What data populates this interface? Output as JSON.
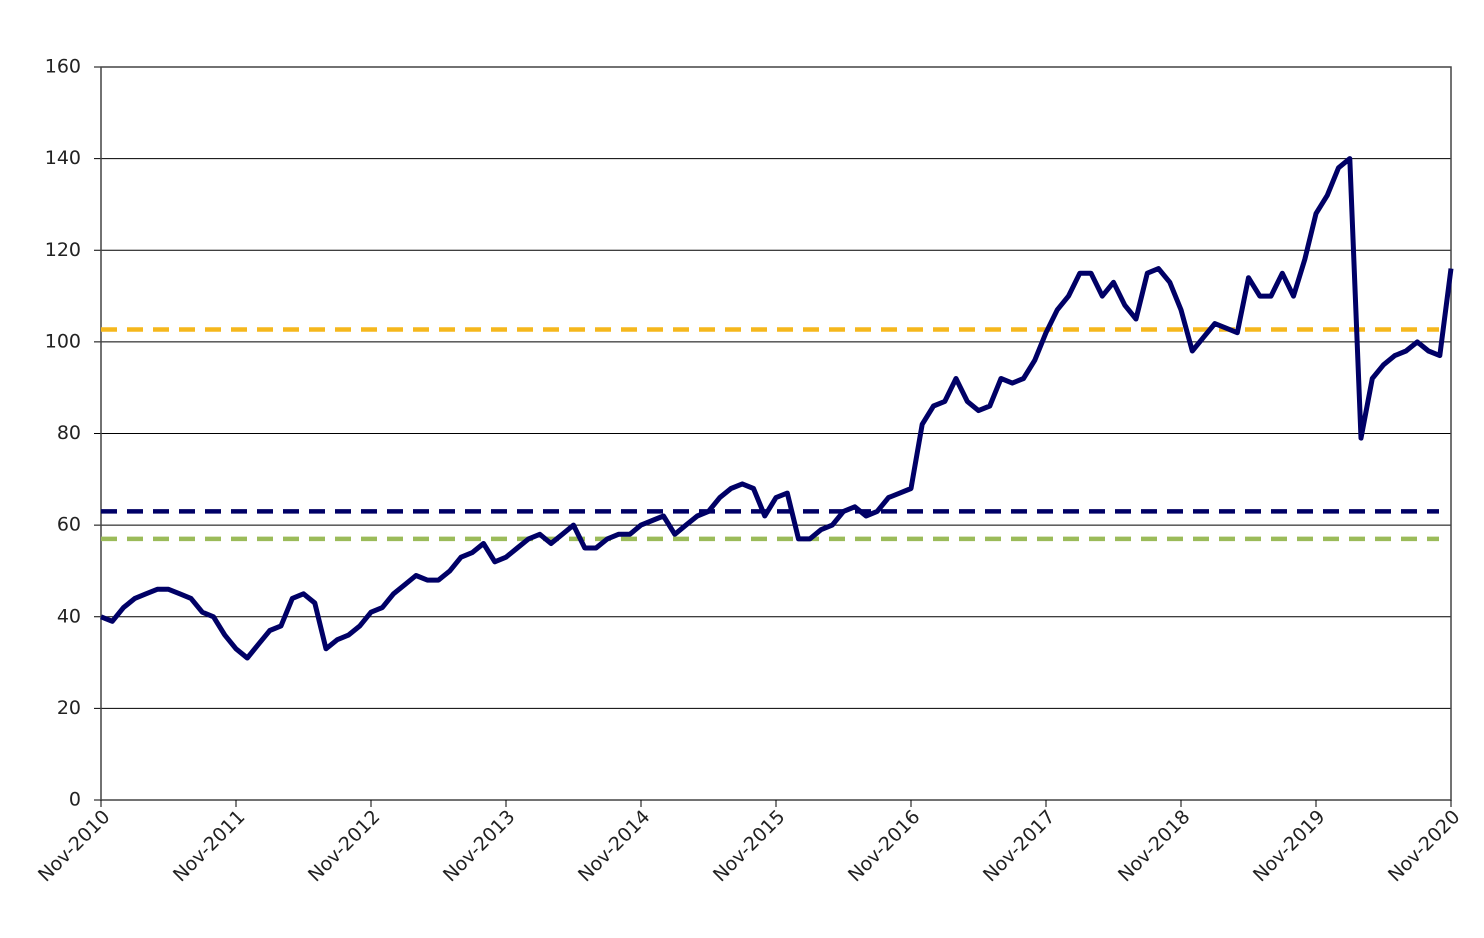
{
  "chart_data": {
    "type": "line",
    "x": [
      "Nov-2010",
      "Dec-2010",
      "Jan-2011",
      "Feb-2011",
      "Mar-2011",
      "Apr-2011",
      "May-2011",
      "Jun-2011",
      "Jul-2011",
      "Aug-2011",
      "Sep-2011",
      "Oct-2011",
      "Nov-2011",
      "Dec-2011",
      "Jan-2012",
      "Feb-2012",
      "Mar-2012",
      "Apr-2012",
      "May-2012",
      "Jun-2012",
      "Jul-2012",
      "Aug-2012",
      "Sep-2012",
      "Oct-2012",
      "Nov-2012",
      "Dec-2012",
      "Jan-2013",
      "Feb-2013",
      "Mar-2013",
      "Apr-2013",
      "May-2013",
      "Jun-2013",
      "Jul-2013",
      "Aug-2013",
      "Sep-2013",
      "Oct-2013",
      "Nov-2013",
      "Dec-2013",
      "Jan-2014",
      "Feb-2014",
      "Mar-2014",
      "Apr-2014",
      "May-2014",
      "Jun-2014",
      "Jul-2014",
      "Aug-2014",
      "Sep-2014",
      "Oct-2014",
      "Nov-2014",
      "Dec-2014",
      "Jan-2015",
      "Feb-2015",
      "Mar-2015",
      "Apr-2015",
      "May-2015",
      "Jun-2015",
      "Jul-2015",
      "Aug-2015",
      "Sep-2015",
      "Oct-2015",
      "Nov-2015",
      "Dec-2015",
      "Jan-2016",
      "Feb-2016",
      "Mar-2016",
      "Apr-2016",
      "May-2016",
      "Jun-2016",
      "Jul-2016",
      "Aug-2016",
      "Sep-2016",
      "Oct-2016",
      "Nov-2016",
      "Dec-2016",
      "Jan-2017",
      "Feb-2017",
      "Mar-2017",
      "Apr-2017",
      "May-2017",
      "Jun-2017",
      "Jul-2017",
      "Aug-2017",
      "Sep-2017",
      "Oct-2017",
      "Nov-2017",
      "Dec-2017",
      "Jan-2018",
      "Feb-2018",
      "Mar-2018",
      "Apr-2018",
      "May-2018",
      "Jun-2018",
      "Jul-2018",
      "Aug-2018",
      "Sep-2018",
      "Oct-2018",
      "Nov-2018",
      "Dec-2018",
      "Jan-2019",
      "Feb-2019",
      "Mar-2019",
      "Apr-2019",
      "May-2019",
      "Jun-2019",
      "Jul-2019",
      "Aug-2019",
      "Sep-2019",
      "Oct-2019",
      "Nov-2019",
      "Dec-2019",
      "Jan-2020",
      "Feb-2020",
      "Mar-2020",
      "Apr-2020",
      "May-2020",
      "Jun-2020",
      "Jul-2020",
      "Aug-2020",
      "Sep-2020",
      "Oct-2020",
      "Nov-2020"
    ],
    "series": [
      {
        "color": "#000066",
        "values": [
          40,
          39,
          42,
          44,
          45,
          46,
          46,
          45,
          44,
          41,
          40,
          36,
          33,
          31,
          34,
          37,
          38,
          44,
          45,
          43,
          33,
          35,
          36,
          38,
          41,
          42,
          45,
          47,
          49,
          48,
          48,
          50,
          53,
          54,
          56,
          52,
          53,
          55,
          57,
          58,
          56,
          58,
          60,
          55,
          55,
          57,
          58,
          58,
          60,
          61,
          62,
          58,
          60,
          62,
          63,
          66,
          68,
          69,
          68,
          62,
          66,
          67,
          57,
          57,
          59,
          60,
          63,
          64,
          62,
          63,
          66,
          67,
          68,
          82,
          86,
          87,
          92,
          87,
          85,
          86,
          92,
          91,
          92,
          96,
          102,
          107,
          110,
          115,
          115,
          110,
          113,
          108,
          105,
          115,
          116,
          113,
          107,
          98,
          101,
          104,
          103,
          102,
          114,
          110,
          110,
          115,
          110,
          118,
          128,
          132,
          138,
          140,
          79,
          92,
          95,
          97,
          98,
          100,
          98,
          97,
          116
        ]
      }
    ],
    "reference_lines": [
      {
        "value": 102.7,
        "color": "#f5b71c"
      },
      {
        "value": 63,
        "color": "#000066"
      },
      {
        "value": 57,
        "color": "#9bbb59"
      }
    ],
    "xticks": [
      "Nov-2010",
      "Nov-2011",
      "Nov-2012",
      "Nov-2013",
      "Nov-2014",
      "Nov-2015",
      "Nov-2016",
      "Nov-2017",
      "Nov-2018",
      "Nov-2019",
      "Nov-2020"
    ],
    "ylim": [
      0,
      160
    ],
    "yticks": [
      0,
      20,
      40,
      60,
      80,
      100,
      120,
      140,
      160
    ],
    "grid": true
  }
}
